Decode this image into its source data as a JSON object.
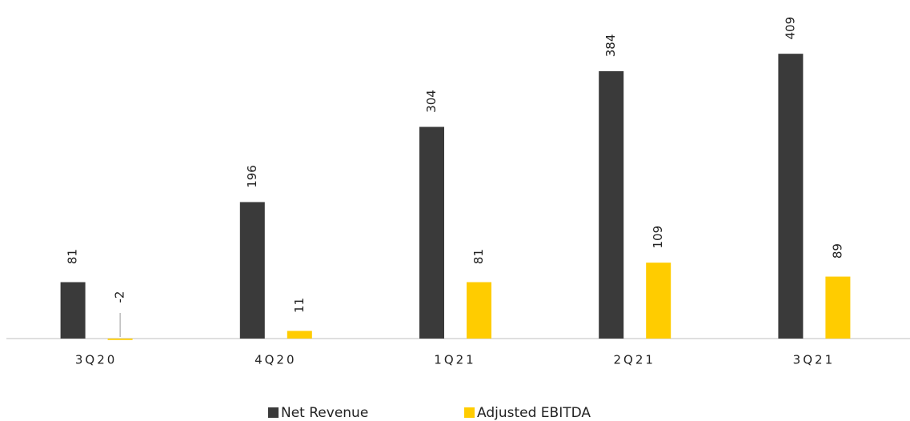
{
  "chart_data": {
    "type": "bar",
    "categories": [
      "3Q20",
      "4Q20",
      "1Q21",
      "2Q21",
      "3Q21"
    ],
    "series": [
      {
        "name": "Net Revenue",
        "color": "#3a3a3a",
        "values": [
          81,
          196,
          304,
          384,
          409
        ]
      },
      {
        "name": "Adjusted EBITDA",
        "color": "#ffcc00",
        "values": [
          -2,
          11,
          81,
          109,
          89
        ]
      }
    ]
  }
}
